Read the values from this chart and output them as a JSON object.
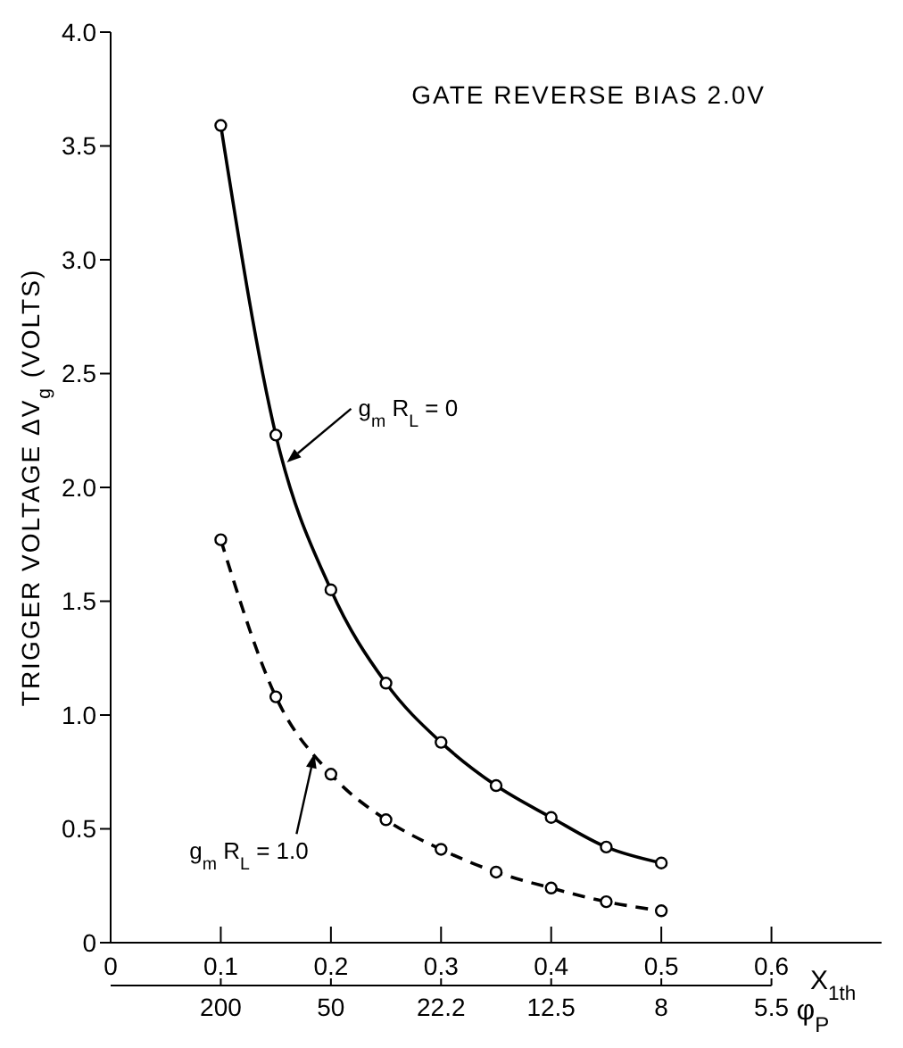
{
  "chart_data": {
    "type": "line",
    "annotations": [
      "GATE REVERSE BIAS 2.0V",
      {
        "text": "g$_{m}$ R$_{L}$ = 0",
        "x": 0.16,
        "y": 2.11
      },
      {
        "text": "g$_{m}$ R$_{L}$ = 1.0",
        "x": 0.185,
        "y": 0.83
      },
      "200",
      "50",
      "22.2",
      "12.5",
      "8",
      "5.5"
    ],
    "xlabel": "X$_{1th}$",
    "ylabel": "TRIGGER VOLTAGE ΔV$_{g}$ (VOLTS)",
    "x2label": "φ$_{P}$",
    "x": [
      0.1,
      0.15,
      0.2,
      0.25,
      0.3,
      0.35,
      0.4,
      0.45,
      0.5
    ],
    "series": [
      {
        "color": "#000000",
        "line_style": "solid",
        "values": [
          3.59,
          2.23,
          1.55,
          1.14,
          0.88,
          0.69,
          0.55,
          0.42,
          0.35
        ]
      },
      {
        "color": "#000000",
        "line_style": "dashed",
        "values": [
          1.77,
          1.08,
          0.74,
          0.54,
          0.41,
          0.31,
          0.24,
          0.18,
          0.14
        ]
      }
    ],
    "xlim": [
      0,
      0.7
    ],
    "xticks": [
      0,
      0.1,
      0.2,
      0.3,
      0.4,
      0.5,
      0.6
    ],
    "ylim": [
      0,
      4
    ],
    "yticks": [
      0,
      0.5,
      {
        "value": 1,
        "label": "1.0"
      },
      1.5,
      {
        "value": 2,
        "label": "2.0"
      },
      2.5,
      {
        "value": 3,
        "label": "3.0"
      },
      3.5,
      {
        "value": 4,
        "label": "4.0"
      }
    ],
    "marker": "circle"
  }
}
